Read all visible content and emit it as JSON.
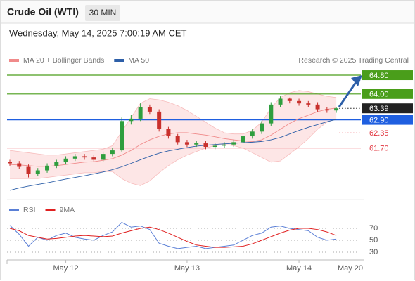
{
  "chart_data": {
    "type": "candlestick",
    "title": "Crude Oil (WTI)",
    "interval": "30 MIN",
    "timestamp": "Wednesday, May 14, 2025 7:00:19 AM CET",
    "source": "Research © 2025 Trading Central",
    "categories": [
      null,
      null,
      null,
      null,
      null,
      null,
      "May 12",
      null,
      null,
      null,
      null,
      null,
      null,
      null,
      null,
      null,
      null,
      null,
      null,
      "May 13",
      null,
      null,
      null,
      null,
      null,
      null,
      null,
      null,
      null,
      null,
      null,
      "May 14",
      null,
      null,
      null,
      null
    ],
    "x_end_label": "May 20",
    "open": [
      61.1,
      61.05,
      60.9,
      60.6,
      60.75,
      60.95,
      61.1,
      61.25,
      61.35,
      61.3,
      61.2,
      61.45,
      61.6,
      62.85,
      62.95,
      63.45,
      63.25,
      62.5,
      62.2,
      61.95,
      61.85,
      61.9,
      61.75,
      61.8,
      61.85,
      61.95,
      62.2,
      62.4,
      62.75,
      63.55,
      63.8,
      63.7,
      63.6,
      63.55,
      63.35,
      63.3
    ],
    "high": [
      61.2,
      61.15,
      61.0,
      60.85,
      61.05,
      61.2,
      61.35,
      61.45,
      61.45,
      61.4,
      61.55,
      61.7,
      63.0,
      63.1,
      63.6,
      63.55,
      63.35,
      62.6,
      62.3,
      62.05,
      62.0,
      62.0,
      61.9,
      61.95,
      62.05,
      62.3,
      62.5,
      62.85,
      63.65,
      63.9,
      63.85,
      63.8,
      63.7,
      63.65,
      63.45,
      63.45
    ],
    "low": [
      60.95,
      60.8,
      60.45,
      60.5,
      60.65,
      60.85,
      61.0,
      61.15,
      61.2,
      61.1,
      61.1,
      61.35,
      61.55,
      62.7,
      62.85,
      63.15,
      62.4,
      62.1,
      61.85,
      61.75,
      61.75,
      61.65,
      61.65,
      61.7,
      61.75,
      61.85,
      62.1,
      62.3,
      62.65,
      63.45,
      63.6,
      63.5,
      63.45,
      63.25,
      63.2,
      63.2
    ],
    "close": [
      61.05,
      60.9,
      60.6,
      60.75,
      60.95,
      61.1,
      61.25,
      61.35,
      61.3,
      61.2,
      61.45,
      61.6,
      62.85,
      62.95,
      63.45,
      63.25,
      62.5,
      62.2,
      61.95,
      61.85,
      61.9,
      61.75,
      61.8,
      61.85,
      61.95,
      62.2,
      62.4,
      62.75,
      63.55,
      63.8,
      63.7,
      63.6,
      63.55,
      63.35,
      63.3,
      63.39
    ],
    "up_color": "#2e9e3e",
    "down_color": "#c9302c",
    "ylim": [
      59.6,
      65.1
    ],
    "series": [
      {
        "name": "MA 20 + Bollinger Bands",
        "color": "#f08a8a",
        "values": [
          61.0,
          60.98,
          60.95,
          60.92,
          60.92,
          60.95,
          61.0,
          61.05,
          61.1,
          61.12,
          61.18,
          61.25,
          61.4,
          61.6,
          61.85,
          62.05,
          62.2,
          62.3,
          62.35,
          62.35,
          62.3,
          62.25,
          62.18,
          62.1,
          62.05,
          62.0,
          61.98,
          62.05,
          62.25,
          62.5,
          62.75,
          62.95,
          63.1,
          63.25,
          63.35,
          63.4
        ],
        "upper": [
          61.6,
          61.55,
          61.5,
          61.45,
          61.4,
          61.4,
          61.45,
          61.5,
          61.55,
          61.6,
          61.65,
          61.8,
          62.4,
          63.0,
          63.6,
          63.8,
          63.75,
          63.65,
          63.5,
          63.3,
          63.05,
          62.8,
          62.55,
          62.35,
          62.3,
          62.3,
          62.45,
          62.8,
          63.4,
          63.85,
          64.05,
          64.15,
          64.1,
          64.0,
          63.9,
          63.85
        ],
        "lower": [
          60.4,
          60.4,
          60.4,
          60.4,
          60.45,
          60.5,
          60.55,
          60.6,
          60.65,
          60.65,
          60.7,
          60.7,
          60.4,
          60.2,
          60.1,
          60.3,
          60.65,
          60.95,
          61.2,
          61.4,
          61.55,
          61.7,
          61.8,
          61.85,
          61.8,
          61.7,
          61.5,
          61.3,
          61.1,
          61.15,
          61.45,
          61.75,
          62.1,
          62.5,
          62.8,
          62.95
        ]
      },
      {
        "name": "MA 50",
        "color": "#2d5fa8",
        "values": [
          59.9,
          60.0,
          60.08,
          60.15,
          60.22,
          60.3,
          60.38,
          60.45,
          60.52,
          60.6,
          60.68,
          60.78,
          60.9,
          61.05,
          61.2,
          61.35,
          61.48,
          61.58,
          61.65,
          61.72,
          61.78,
          61.82,
          61.85,
          61.88,
          61.9,
          61.93,
          61.95,
          61.98,
          62.05,
          62.15,
          62.3,
          62.45,
          62.58,
          62.7,
          62.82,
          62.92
        ]
      }
    ],
    "levels": [
      {
        "value": 64.8,
        "label": "64.80",
        "color": "#4a9e1a",
        "filled": true,
        "style": "solid"
      },
      {
        "value": 64.0,
        "label": "64.00",
        "color": "#4a9e1a",
        "filled": true,
        "style": "solid"
      },
      {
        "value": 63.39,
        "label": "63.39",
        "color": "#222222",
        "filled": true,
        "style": "dotted"
      },
      {
        "value": 62.9,
        "label": "62.90",
        "color": "#1f5fe0",
        "filled": true,
        "style": "solid"
      },
      {
        "value": 62.35,
        "label": "62.35",
        "color": "#e0303a",
        "filled": false,
        "style": "dotted"
      },
      {
        "value": 61.7,
        "label": "61.70",
        "color": "#e0303a",
        "filled": false,
        "style": "solid"
      }
    ],
    "rsi": {
      "type": "line",
      "ylim": [
        17,
        90
      ],
      "yticks": [
        70,
        50,
        30
      ],
      "series": [
        {
          "name": "RSI",
          "color": "#5a7fd6",
          "values": [
            75,
            60,
            40,
            55,
            50,
            58,
            62,
            55,
            52,
            50,
            58,
            64,
            80,
            72,
            74,
            68,
            45,
            40,
            36,
            38,
            40,
            36,
            38,
            40,
            42,
            50,
            58,
            62,
            72,
            74,
            70,
            68,
            66,
            55,
            50,
            52
          ]
        },
        {
          "name": "9MA",
          "color": "#e02020",
          "values": [
            70,
            66,
            58,
            55,
            52,
            53,
            55,
            57,
            58,
            57,
            56,
            57,
            62,
            66,
            70,
            72,
            68,
            62,
            55,
            48,
            42,
            40,
            38,
            38,
            39,
            40,
            44,
            50,
            56,
            62,
            67,
            70,
            70,
            68,
            64,
            58
          ]
        }
      ]
    }
  }
}
